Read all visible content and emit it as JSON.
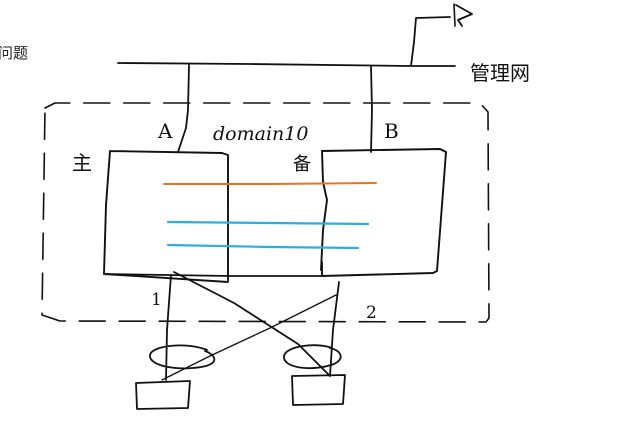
{
  "page": {
    "title_fragment": "问题"
  },
  "labels": {
    "management_network": "管理网",
    "switch_a": "A",
    "switch_b": "B",
    "domain": "domain10",
    "primary": "主",
    "backup": "备",
    "link_1": "1",
    "link_2": "2"
  },
  "colors": {
    "ink": "#111111",
    "orange_link": "#e8741e",
    "blue_link": "#29aee6"
  },
  "icons": {
    "management_station": "flag-icon"
  }
}
